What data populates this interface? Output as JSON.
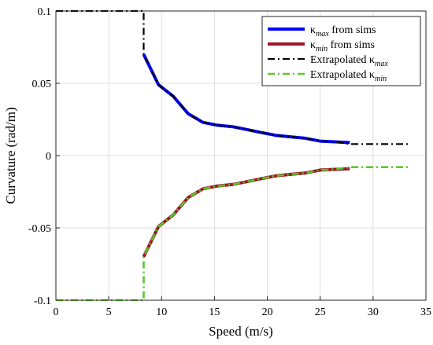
{
  "chart_data": {
    "type": "line",
    "title": "",
    "xlabel": "Speed (m/s)",
    "ylabel": "Curvature (rad/m)",
    "xlim": [
      0,
      35
    ],
    "ylim": [
      -0.1,
      0.1
    ],
    "xticks": [
      0,
      5,
      10,
      15,
      20,
      25,
      30,
      35
    ],
    "yticks": [
      -0.1,
      -0.05,
      0,
      0.05,
      0.1
    ],
    "xtick_labels": [
      "0",
      "5",
      "10",
      "15",
      "20",
      "25",
      "30",
      "35"
    ],
    "ytick_labels": [
      "-0.1",
      "-0.05",
      "0",
      "0.05",
      "0.1"
    ],
    "grid": true,
    "legend_position": "top-right",
    "series": [
      {
        "name": "κmax from sims",
        "legend_main": "κ",
        "legend_sub": "max",
        "legend_suffix": " from sims",
        "color": "#0000ff",
        "style": "solid",
        "x": [
          8.3,
          9.7,
          11.1,
          12.5,
          13.9,
          15.3,
          16.7,
          18.1,
          19.4,
          20.8,
          22.2,
          23.6,
          25.0,
          26.4,
          27.8
        ],
        "y": [
          0.07,
          0.049,
          0.041,
          0.029,
          0.023,
          0.021,
          0.02,
          0.018,
          0.016,
          0.014,
          0.013,
          0.012,
          0.01,
          0.0095,
          0.009
        ]
      },
      {
        "name": "κmin from sims",
        "legend_main": "κ",
        "legend_sub": "min",
        "legend_suffix": " from sims",
        "color": "#a0142c",
        "style": "solid",
        "x": [
          8.3,
          9.7,
          11.1,
          12.5,
          13.9,
          15.3,
          16.7,
          18.1,
          19.4,
          20.8,
          22.2,
          23.6,
          25.0,
          26.4,
          27.8
        ],
        "y": [
          -0.07,
          -0.049,
          -0.041,
          -0.029,
          -0.023,
          -0.021,
          -0.02,
          -0.018,
          -0.016,
          -0.014,
          -0.013,
          -0.012,
          -0.01,
          -0.0095,
          -0.009
        ]
      },
      {
        "name": "Extrapolated κmax",
        "legend_main": "Extrapolated κ",
        "legend_sub": "max",
        "legend_suffix": "",
        "color": "#000000",
        "style": "dashdot",
        "x": [
          0,
          8.3,
          8.3,
          9.7,
          11.1,
          12.5,
          13.9,
          15.3,
          16.7,
          18.1,
          19.4,
          20.8,
          22.2,
          23.6,
          25.0,
          26.4,
          27.8,
          33.3
        ],
        "y": [
          0.1,
          0.1,
          0.07,
          0.049,
          0.041,
          0.029,
          0.023,
          0.021,
          0.02,
          0.018,
          0.016,
          0.014,
          0.013,
          0.012,
          0.01,
          0.0095,
          0.008,
          0.008
        ]
      },
      {
        "name": "Extrapolated κmin",
        "legend_main": "Extrapolated κ",
        "legend_sub": "min",
        "legend_suffix": "",
        "color": "#55cc22",
        "style": "dashdot",
        "x": [
          0,
          8.3,
          8.3,
          9.7,
          11.1,
          12.5,
          13.9,
          15.3,
          16.7,
          18.1,
          19.4,
          20.8,
          22.2,
          23.6,
          25.0,
          26.4,
          27.8,
          33.3
        ],
        "y": [
          -0.1,
          -0.1,
          -0.07,
          -0.049,
          -0.041,
          -0.029,
          -0.023,
          -0.021,
          -0.02,
          -0.018,
          -0.016,
          -0.014,
          -0.013,
          -0.012,
          -0.01,
          -0.0095,
          -0.008,
          -0.008
        ]
      }
    ]
  }
}
